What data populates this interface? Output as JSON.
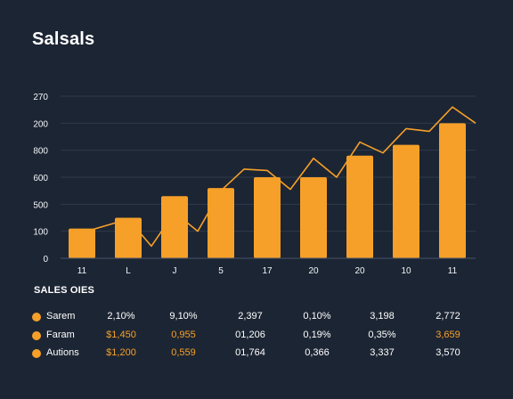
{
  "page": {
    "title": "Salsals",
    "table_title": "SALES OIES"
  },
  "chart_data": {
    "type": "bar",
    "title": "Salsals",
    "xlabel": "",
    "ylabel": "",
    "y_tick_labels": [
      "0",
      "100",
      "500",
      "600",
      "800",
      "200",
      "270"
    ],
    "y_tick_positions": [
      0,
      1,
      2,
      3,
      4,
      5,
      6
    ],
    "ylim": [
      0,
      6
    ],
    "grid": true,
    "categories": [
      "11",
      "L",
      "J",
      "5",
      "17",
      "20",
      "20",
      "10",
      "11"
    ],
    "bar_values": [
      1.1,
      1.5,
      2.3,
      2.6,
      3.0,
      3.0,
      3.8,
      4.2,
      5.0
    ],
    "line_points": [
      [
        0,
        0.95
      ],
      [
        1,
        1.45
      ],
      [
        1.5,
        0.45
      ],
      [
        2,
        1.7
      ],
      [
        2.5,
        1.0
      ],
      [
        3,
        2.5
      ],
      [
        3.5,
        3.3
      ],
      [
        4,
        3.25
      ],
      [
        4.5,
        2.55
      ],
      [
        5,
        3.7
      ],
      [
        5.5,
        3.0
      ],
      [
        6,
        4.3
      ],
      [
        6.5,
        3.9
      ],
      [
        7,
        4.8
      ],
      [
        7.5,
        4.7
      ],
      [
        8,
        5.6
      ],
      [
        8.5,
        5.0
      ]
    ],
    "colors": {
      "bar": "#f6a029",
      "line": "#f6a029",
      "grid": "#2e3a4b",
      "axis": "#44536b",
      "text": "#f4f6fb"
    }
  },
  "table": {
    "rows": [
      {
        "label": "Sarem",
        "values": [
          "2,10%",
          "9,10%",
          "2,397",
          "0,10%",
          "3,198",
          "2,772"
        ],
        "accent": [
          false,
          false,
          false,
          false,
          false,
          false
        ]
      },
      {
        "label": "Faram",
        "values": [
          "$1,450",
          "0,955",
          "01,206",
          "0,19%",
          "0,35%",
          "3,659"
        ],
        "accent": [
          true,
          true,
          false,
          false,
          false,
          true
        ]
      },
      {
        "label": "Autions",
        "values": [
          "$1,200",
          "0,559",
          "01,764",
          "0,366",
          "3,337",
          "3,570"
        ],
        "accent": [
          true,
          true,
          false,
          false,
          false,
          false
        ]
      }
    ]
  }
}
